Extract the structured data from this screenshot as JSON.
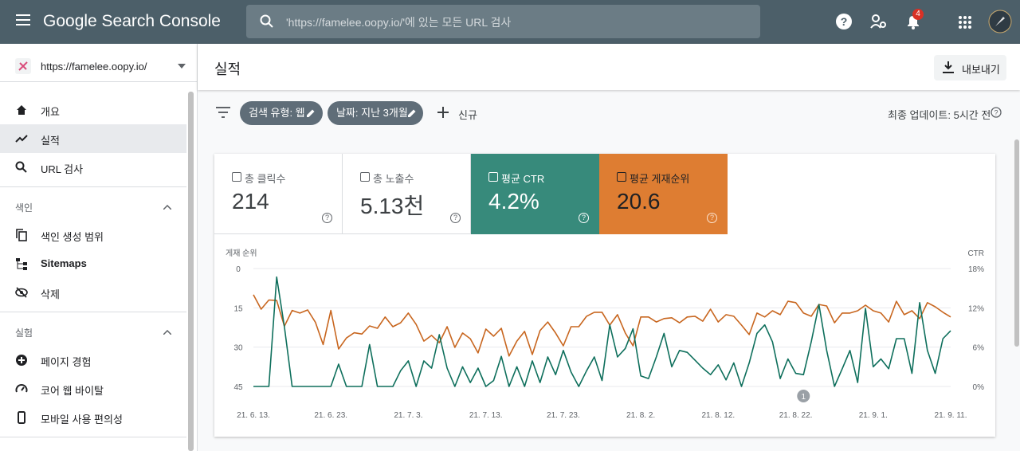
{
  "header": {
    "product": "Google Search Console",
    "search_placeholder": "'https://famelee.oopy.io/'에 있는 모든 URL 검사",
    "notifications": "4"
  },
  "sidebar": {
    "property": "https://famelee.oopy.io/",
    "nav": [
      "개요",
      "실적",
      "URL 검사"
    ],
    "sections": [
      {
        "title": "색인",
        "items": [
          "색인 생성 범위",
          "Sitemaps",
          "삭제"
        ]
      },
      {
        "title": "실험",
        "items": [
          "페이지 경험",
          "코어 웹 바이탈",
          "모바일 사용 편의성"
        ]
      }
    ]
  },
  "page": {
    "title": "실적",
    "export": "내보내기",
    "filters": [
      "검색 유형: 웹",
      "날짜: 지난 3개월"
    ],
    "new": "신규",
    "last_update": "최종 업데이트: 5시간 전"
  },
  "metrics": [
    {
      "label": "총 클릭수",
      "value": "214"
    },
    {
      "label": "총 노출수",
      "value": "5.13천"
    },
    {
      "label": "평균 CTR",
      "value": "4.2%"
    },
    {
      "label": "평균 게재순위",
      "value": "20.6"
    }
  ],
  "chart_data": {
    "type": "line",
    "ylabel": "게재 순위",
    "y2label": "CTR",
    "categories": [
      "21. 6. 13.",
      null,
      null,
      null,
      null,
      null,
      null,
      null,
      null,
      null,
      "21. 6. 23.",
      null,
      null,
      null,
      null,
      null,
      null,
      null,
      null,
      null,
      "21. 7. 3.",
      null,
      null,
      null,
      null,
      null,
      null,
      null,
      null,
      null,
      "21. 7. 13.",
      null,
      null,
      null,
      null,
      null,
      null,
      null,
      null,
      null,
      "21. 7. 23.",
      null,
      null,
      null,
      null,
      null,
      null,
      null,
      null,
      null,
      "21. 8. 2.",
      null,
      null,
      null,
      null,
      null,
      null,
      null,
      null,
      null,
      "21. 8. 12.",
      null,
      null,
      null,
      null,
      null,
      null,
      null,
      null,
      null,
      "21. 8. 22.",
      null,
      null,
      null,
      null,
      null,
      null,
      null,
      null,
      null,
      "21. 9. 1.",
      null,
      null,
      null,
      null,
      null,
      null,
      null,
      null,
      null,
      "21. 9. 11."
    ],
    "series": [
      {
        "color": "#c8661f",
        "values": [
          10,
          15.5,
          12,
          12.2,
          22,
          16,
          17,
          15.8,
          20.5,
          29,
          16,
          30.7,
          26.5,
          24.5,
          25,
          21.9,
          22.8,
          18.5,
          22.2,
          20.7,
          17,
          21.3,
          27.7,
          25.5,
          28.3,
          22.2,
          30.1,
          24.6,
          26.8,
          32.2,
          23.1,
          25.8,
          22.8,
          33.4,
          27.7,
          24,
          32.8,
          23.7,
          20.4,
          24.6,
          29.5,
          22.2,
          22.2,
          18.2,
          16.7,
          16.7,
          21.6,
          17.6,
          24.6,
          29.5,
          18.5,
          18.5,
          20.4,
          19.1,
          18.8,
          20.7,
          18.5,
          18.2,
          20.1,
          15.5,
          20.4,
          17.6,
          18.2,
          21.6,
          25.2,
          17,
          18.5,
          16.1,
          17.6,
          12.5,
          13,
          17,
          18.2,
          13.7,
          14.3,
          20.7,
          17,
          17,
          16.1,
          14,
          16.1,
          17,
          20.4,
          12.5,
          17.6,
          16.1,
          19.1,
          13,
          14.6,
          16.7,
          18.5
        ]
      },
      {
        "color": "#0e6f5c",
        "axis": "y2",
        "values": [
          0,
          0,
          0,
          16.7,
          9.1,
          0,
          0,
          0,
          0,
          0,
          0,
          3.4,
          0,
          0,
          0,
          6.4,
          0,
          0,
          0,
          2.4,
          3.9,
          0,
          3.9,
          2.8,
          7.9,
          2.8,
          0,
          3,
          0.6,
          2.8,
          0,
          0.9,
          4.6,
          0,
          3,
          0,
          3.9,
          0.6,
          4.5,
          1.8,
          5.5,
          2.2,
          0,
          2.4,
          4.5,
          0.9,
          9.4,
          4.5,
          5.8,
          8.8,
          1.6,
          1.2,
          4.5,
          8.1,
          3,
          5.5,
          5.2,
          4,
          2.8,
          1.8,
          3.3,
          1,
          3.6,
          0,
          3.6,
          8.1,
          9.4,
          6.8,
          1.2,
          4.2,
          2,
          1.8,
          6.8,
          12.5,
          5.5,
          0,
          2.7,
          5.5,
          0.6,
          11.9,
          3,
          4.2,
          2.7,
          7.3,
          7.3,
          2,
          12.8,
          5.5,
          2,
          7.3,
          8.5
        ]
      }
    ],
    "ylim": [
      0,
      45
    ],
    "y_inverted": true,
    "yticks": [
      0,
      15,
      30,
      45
    ],
    "y2lim": [
      0,
      18
    ],
    "y2ticks": [
      {
        "value": 0,
        "label": "0%"
      },
      {
        "value": 6,
        "label": "6%"
      },
      {
        "value": 12,
        "label": "12%"
      },
      {
        "value": 18,
        "label": "18%"
      }
    ],
    "grid": true,
    "annotations": [
      {
        "label": "1",
        "index": 71
      }
    ]
  }
}
